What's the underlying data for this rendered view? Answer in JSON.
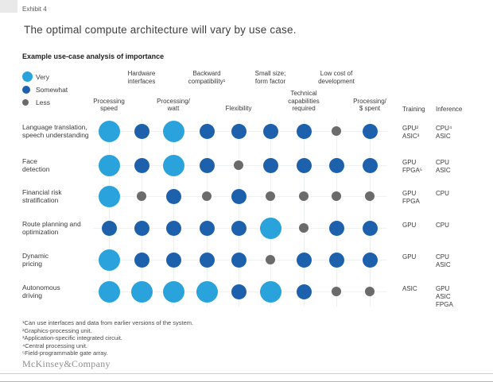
{
  "exhibit": "Exhibit 4",
  "title": "The optimal compute architecture will vary by use case.",
  "subtitle": "Example use-case analysis of importance",
  "legend": {
    "items": [
      {
        "label": "Very",
        "level": "very"
      },
      {
        "label": "Somewhat",
        "level": "somewhat"
      },
      {
        "label": "Less",
        "level": "less"
      }
    ]
  },
  "colors": {
    "very": "#2aa2db",
    "somewhat": "#1d61ad",
    "less": "#6b6b6b"
  },
  "chart_data": {
    "type": "heatmap",
    "title": "Example use-case analysis of importance",
    "value_scale": [
      "very",
      "somewhat",
      "less"
    ],
    "columns": [
      {
        "label": "Processing\nspeed",
        "tier": "bottom"
      },
      {
        "label": "Hardware\ninterfaces",
        "tier": "top"
      },
      {
        "label": "Processing/\nwatt",
        "tier": "bottom"
      },
      {
        "label": "Backward\ncompatibility¹",
        "tier": "top"
      },
      {
        "label": "Flexibility",
        "tier": "bottom"
      },
      {
        "label": "Small size;\nform factor",
        "tier": "top"
      },
      {
        "label": "Technical\ncapabilities\nrequired",
        "tier": "bottom"
      },
      {
        "label": "Low cost of\ndevelopment",
        "tier": "top"
      },
      {
        "label": "Processing/\n$ spent",
        "tier": "bottom"
      }
    ],
    "extra_columns": [
      "Training",
      "Inference"
    ],
    "rows": [
      {
        "label": "Language translation,\nspeech understanding",
        "values": [
          "very",
          "somewhat",
          "very",
          "somewhat",
          "somewhat",
          "somewhat",
          "somewhat",
          "less",
          "somewhat"
        ],
        "training": [
          "GPU²",
          "ASIC³"
        ],
        "inference": [
          "CPU⁴",
          "ASIC"
        ]
      },
      {
        "label": "Face\ndetection",
        "values": [
          "very",
          "somewhat",
          "very",
          "somewhat",
          "less",
          "somewhat",
          "somewhat",
          "somewhat",
          "somewhat"
        ],
        "training": [
          "GPU",
          "FPGA⁵"
        ],
        "inference": [
          "CPU",
          "ASIC"
        ]
      },
      {
        "label": "Financial risk\nstratification",
        "values": [
          "very",
          "less",
          "somewhat",
          "less",
          "somewhat",
          "less",
          "less",
          "less",
          "less"
        ],
        "training": [
          "GPU",
          "FPGA"
        ],
        "inference": [
          "CPU"
        ]
      },
      {
        "label": "Route planning and\noptimization",
        "values": [
          "somewhat",
          "somewhat",
          "somewhat",
          "somewhat",
          "somewhat",
          "very",
          "less",
          "somewhat",
          "somewhat"
        ],
        "training": [
          "GPU"
        ],
        "inference": [
          "CPU"
        ]
      },
      {
        "label": "Dynamic\npricing",
        "values": [
          "very",
          "somewhat",
          "somewhat",
          "somewhat",
          "somewhat",
          "less",
          "somewhat",
          "somewhat",
          "somewhat"
        ],
        "training": [
          "GPU"
        ],
        "inference": [
          "CPU",
          "ASIC"
        ]
      },
      {
        "label": "Autonomous\ndriving",
        "values": [
          "very",
          "very",
          "very",
          "very",
          "somewhat",
          "very",
          "somewhat",
          "less",
          "less"
        ],
        "training": [
          "ASIC"
        ],
        "inference": [
          "GPU",
          "ASIC",
          "FPGA"
        ]
      }
    ]
  },
  "footnotes": [
    "¹Can use interfaces and data from earlier versions of the system.",
    "²Graphics-processing unit.",
    "³Application-specific integrated circuit.",
    "⁴Central processing unit.",
    "⁵Field-programmable gate array."
  ],
  "brand": "McKinsey&Company"
}
